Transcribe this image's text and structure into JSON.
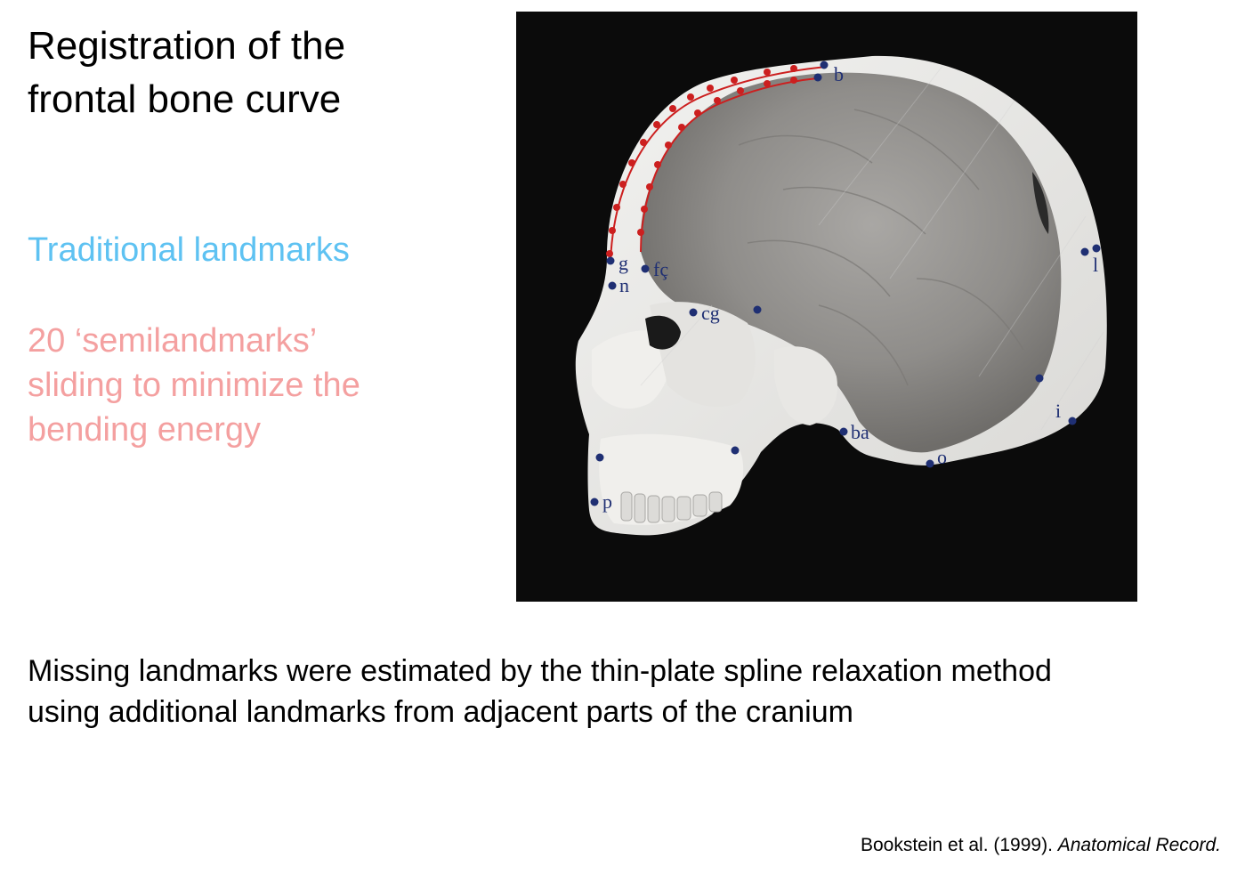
{
  "slide": {
    "title_lines": [
      "Registration of the",
      "frontal bone curve"
    ],
    "traditional_label": "Traditional landmarks",
    "semi_lines": [
      "20 ‘semilandmarks’",
      "sliding to minimize the",
      "bending energy"
    ],
    "bottom_lines": [
      "Missing landmarks were estimated by the thin-plate spline relaxation method",
      "using additional landmarks from adjacent parts of the cranium"
    ],
    "citation": {
      "authors": "Bookstein et al. (1999). ",
      "journal": "Anatomical Record."
    }
  },
  "figure": {
    "landmark_labels": {
      "b": "b",
      "g": "g",
      "n": "n",
      "fc": "fç",
      "cg": "cg",
      "l": "l",
      "i": "i",
      "ba": "ba",
      "o": "o",
      "p": "p"
    },
    "colors": {
      "background": "#0b0b0b",
      "traditional_landmark": "#1f2f73",
      "semilandmark": "#cc1f1f",
      "skull_outline": "#ffffff",
      "brain": "#8c8a87"
    }
  }
}
